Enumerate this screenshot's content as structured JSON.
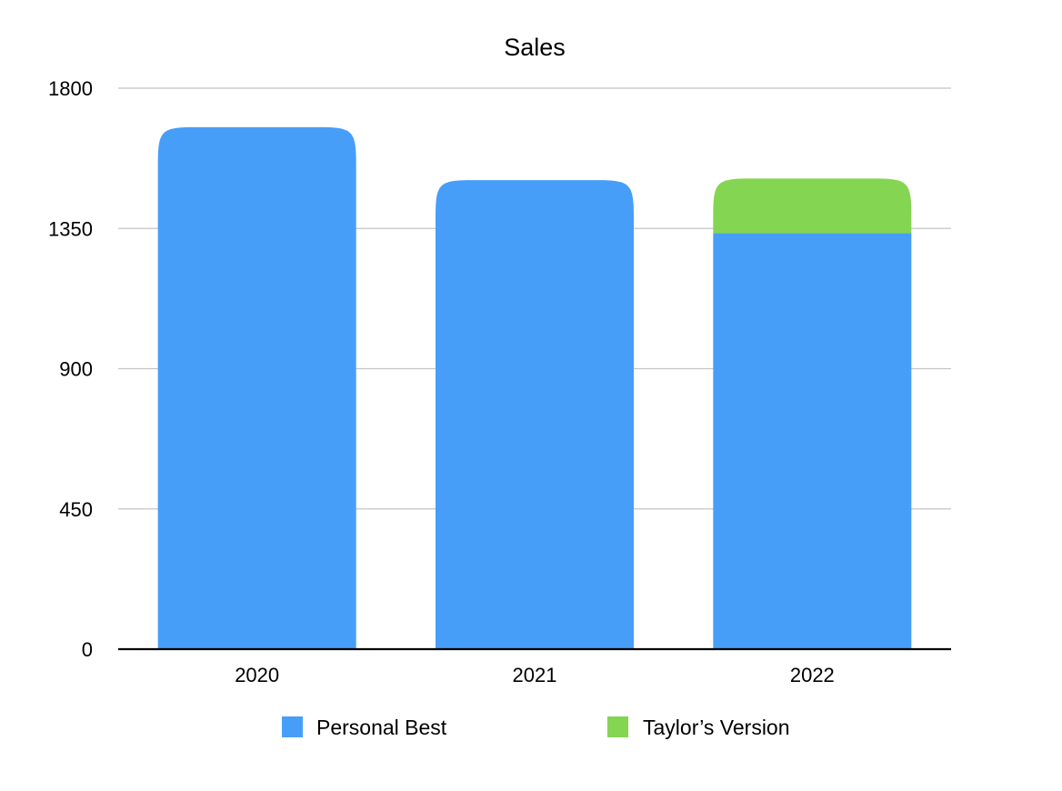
{
  "chart_data": {
    "type": "bar",
    "stacked": true,
    "title": "Sales",
    "xlabel": "",
    "ylabel": "",
    "categories": [
      "2020",
      "2021",
      "2022"
    ],
    "series": [
      {
        "name": "Personal Best",
        "values": [
          1675,
          1505,
          1335
        ],
        "color": "#479EF8"
      },
      {
        "name": "Taylor’s Version",
        "values": [
          0,
          0,
          175
        ],
        "color": "#83D552"
      }
    ],
    "ylim": [
      0,
      1800
    ],
    "yticks": [
      0,
      450,
      900,
      1350,
      1800
    ],
    "grid": true,
    "legend_position": "bottom"
  }
}
